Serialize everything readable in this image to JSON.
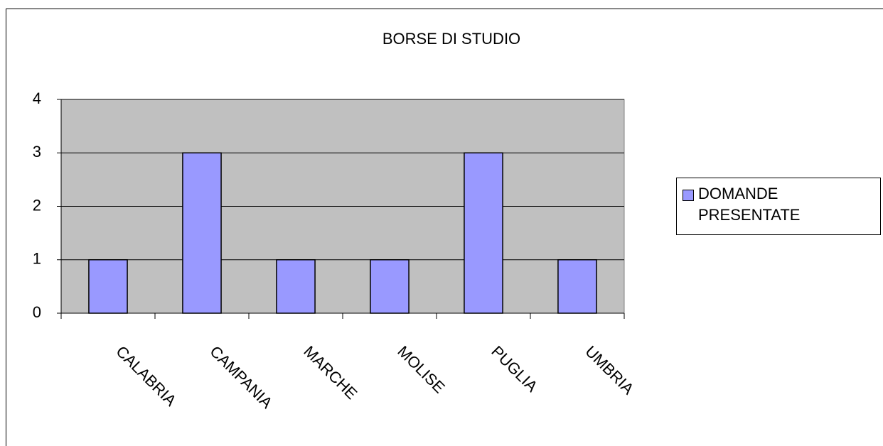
{
  "chart_data": {
    "type": "bar",
    "title": "BORSE DI STUDIO",
    "categories": [
      "CALABRIA",
      "CAMPANIA",
      "MARCHE",
      "MOLISE",
      "PUGLIA",
      "UMBRIA"
    ],
    "series": [
      {
        "name": "DOMANDE PRESENTATE",
        "color": "#9999ff",
        "values": [
          1,
          3,
          1,
          1,
          3,
          1
        ]
      }
    ],
    "ylim": [
      0,
      4
    ],
    "yticks": [
      0,
      1,
      2,
      3,
      4
    ],
    "grid": true,
    "legend": "right"
  }
}
